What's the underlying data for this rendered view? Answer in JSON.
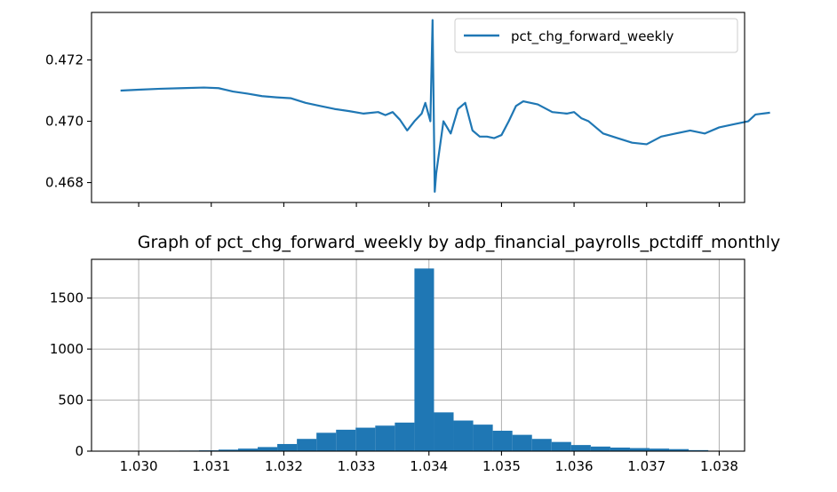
{
  "chart_data": [
    {
      "type": "line",
      "title": "",
      "xlabel": "",
      "ylabel": "",
      "legend": {
        "placement": "upper-right",
        "entries": [
          "pct_chg_forward_weekly"
        ]
      },
      "grid": false,
      "sharex_with": "histogram",
      "xlim": [
        1.02935,
        1.03835
      ],
      "ylim": [
        0.46735,
        0.47355
      ],
      "yticks": [
        0.468,
        0.47,
        0.472
      ],
      "ytick_labels": [
        "0.468",
        "0.470",
        "0.472"
      ],
      "series": [
        {
          "name": "pct_chg_forward_weekly",
          "color": "#1f77b4",
          "points": [
            [
              1.02975,
              0.471
            ],
            [
              1.03,
              0.47103
            ],
            [
              1.0303,
              0.47106
            ],
            [
              1.0306,
              0.47108
            ],
            [
              1.0309,
              0.4711
            ],
            [
              1.0311,
              0.47108
            ],
            [
              1.0313,
              0.47097
            ],
            [
              1.0315,
              0.4709
            ],
            [
              1.0317,
              0.47082
            ],
            [
              1.0319,
              0.47078
            ],
            [
              1.0321,
              0.47075
            ],
            [
              1.0323,
              0.4706
            ],
            [
              1.0325,
              0.4705
            ],
            [
              1.0327,
              0.4704
            ],
            [
              1.0329,
              0.47033
            ],
            [
              1.0331,
              0.47025
            ],
            [
              1.0333,
              0.4703
            ],
            [
              1.0334,
              0.4702
            ],
            [
              1.0335,
              0.4703
            ],
            [
              1.0336,
              0.47005
            ],
            [
              1.0337,
              0.4697
            ],
            [
              1.0338,
              0.47
            ],
            [
              1.0339,
              0.47025
            ],
            [
              1.03395,
              0.4706
            ],
            [
              1.03402,
              0.47
            ],
            [
              1.03405,
              0.4733
            ],
            [
              1.03408,
              0.4677
            ],
            [
              1.0341,
              0.4683
            ],
            [
              1.0342,
              0.47
            ],
            [
              1.0343,
              0.4696
            ],
            [
              1.0344,
              0.4704
            ],
            [
              1.0345,
              0.4706
            ],
            [
              1.0346,
              0.4697
            ],
            [
              1.0347,
              0.4695
            ],
            [
              1.0348,
              0.4695
            ],
            [
              1.0349,
              0.46945
            ],
            [
              1.035,
              0.46955
            ],
            [
              1.0351,
              0.47
            ],
            [
              1.0352,
              0.4705
            ],
            [
              1.0353,
              0.47065
            ],
            [
              1.0355,
              0.47055
            ],
            [
              1.0357,
              0.4703
            ],
            [
              1.0359,
              0.47025
            ],
            [
              1.036,
              0.4703
            ],
            [
              1.0361,
              0.4701
            ],
            [
              1.0362,
              0.47
            ],
            [
              1.0364,
              0.4696
            ],
            [
              1.0366,
              0.46945
            ],
            [
              1.0368,
              0.4693
            ],
            [
              1.037,
              0.46925
            ],
            [
              1.0372,
              0.4695
            ],
            [
              1.0374,
              0.4696
            ],
            [
              1.0376,
              0.4697
            ],
            [
              1.0378,
              0.4696
            ],
            [
              1.038,
              0.4698
            ],
            [
              1.0382,
              0.4699
            ],
            [
              1.0384,
              0.47
            ],
            [
              1.0385,
              0.47022
            ],
            [
              1.0387,
              0.47028
            ]
          ]
        }
      ]
    },
    {
      "type": "bar",
      "title": "Graph of pct_chg_forward_weekly by adp_financial_payrolls_pctdiff_monthly",
      "xlabel": "",
      "ylabel": "",
      "grid": true,
      "xlim": [
        1.02935,
        1.03835
      ],
      "ylim": [
        0,
        1880
      ],
      "xticks": [
        1.03,
        1.031,
        1.032,
        1.033,
        1.034,
        1.035,
        1.036,
        1.037,
        1.038
      ],
      "xtick_labels": [
        "1.030",
        "1.031",
        "1.032",
        "1.033",
        "1.034",
        "1.035",
        "1.036",
        "1.037",
        "1.038"
      ],
      "yticks": [
        0,
        500,
        1000,
        1500
      ],
      "ytick_labels": [
        "0",
        "500",
        "1000",
        "1500"
      ],
      "bar_color": "#1f77b4",
      "bin_edges": [
        1.02975,
        1.03002,
        1.03029,
        1.03056,
        1.03083,
        1.0311,
        1.03137,
        1.03164,
        1.03191,
        1.03218,
        1.03245,
        1.03272,
        1.03299,
        1.03326,
        1.03353,
        1.0338,
        1.03407,
        1.03434,
        1.03461,
        1.03488,
        1.03515,
        1.03542,
        1.03569,
        1.03596,
        1.03623,
        1.0365,
        1.03677,
        1.03704,
        1.03731,
        1.03758,
        1.03785
      ],
      "values": [
        3,
        4,
        5,
        6,
        8,
        15,
        25,
        40,
        70,
        120,
        180,
        210,
        230,
        250,
        280,
        1790,
        380,
        300,
        260,
        200,
        160,
        120,
        90,
        60,
        45,
        35,
        30,
        25,
        20,
        10
      ]
    }
  ]
}
